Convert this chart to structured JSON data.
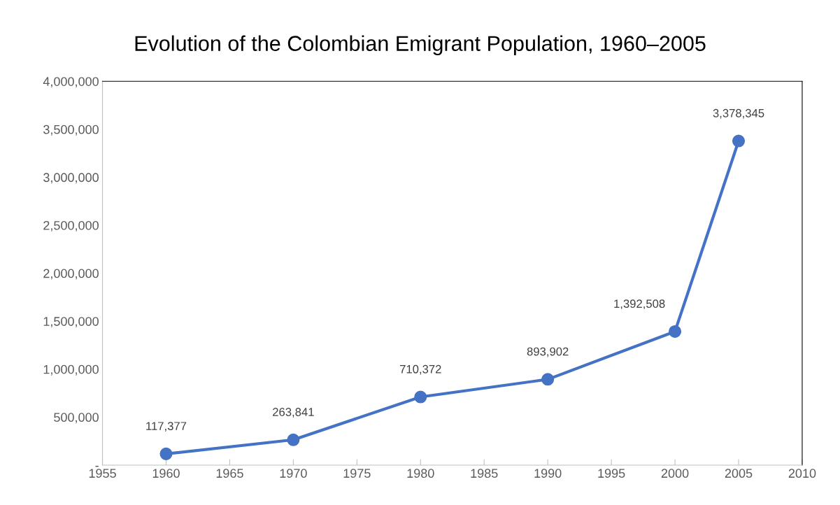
{
  "chart_data": {
    "type": "line",
    "title": "Evolution of the Colombian Emigrant Population, 1960–2005",
    "x": [
      1960,
      1970,
      1980,
      1990,
      2000,
      2005
    ],
    "series": [
      {
        "color": "#4472c4",
        "values": [
          117377,
          263841,
          710372,
          893902,
          1392508,
          3378345
        ],
        "value_labels": [
          "117,377",
          "263,841",
          "710,372",
          "893,902",
          "1,392,508",
          "3,378,345"
        ]
      }
    ],
    "xlim": [
      1955,
      2010
    ],
    "xticks": [
      1955,
      1960,
      1965,
      1970,
      1975,
      1980,
      1985,
      1990,
      1995,
      2000,
      2005,
      2010
    ],
    "ylim": [
      0,
      4000000
    ],
    "yticks": [
      {
        "value": 0,
        "label": "-"
      },
      {
        "value": 500000,
        "label": "500,000"
      },
      {
        "value": 1000000,
        "label": "1,000,000"
      },
      {
        "value": 1500000,
        "label": "1,500,000"
      },
      {
        "value": 2000000,
        "label": "2,000,000"
      },
      {
        "value": 2500000,
        "label": "2,500,000"
      },
      {
        "value": 3000000,
        "label": "3,000,000"
      },
      {
        "value": 3500000,
        "label": "3,500,000"
      },
      {
        "value": 4000000,
        "label": "4,000,000"
      }
    ],
    "marker": "circle",
    "line_style": "solid",
    "grid": false,
    "legend": false
  }
}
